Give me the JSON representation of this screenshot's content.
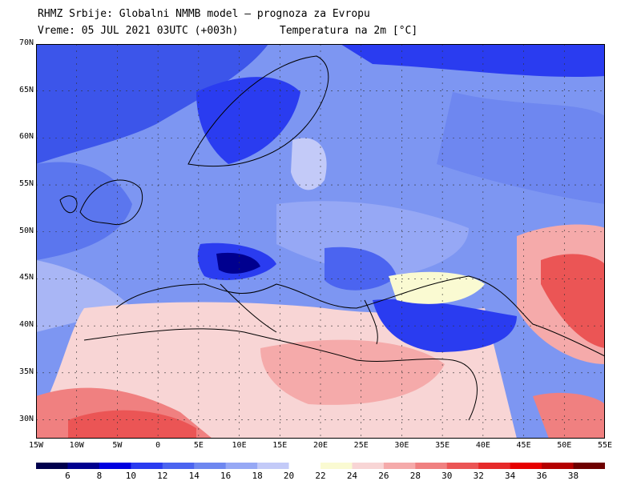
{
  "header": {
    "title": "RHMZ Srbije: Globalni NMMB model — prognoza za Evropu",
    "valid_time": "Vreme: 05 JUL 2021 03UTC (+003h)",
    "field": "Temperatura na 2m [°C]"
  },
  "axes": {
    "lat_labels": [
      "70N",
      "65N",
      "60N",
      "55N",
      "50N",
      "45N",
      "40N",
      "35N",
      "30N"
    ],
    "lat_values": [
      70,
      65,
      60,
      55,
      50,
      45,
      40,
      35,
      30
    ],
    "lon_labels": [
      "15W",
      "10W",
      "5W",
      "0",
      "5E",
      "10E",
      "15E",
      "20E",
      "25E",
      "30E",
      "35E",
      "40E",
      "45E",
      "50E",
      "55E"
    ],
    "lon_values": [
      -15,
      -10,
      -5,
      0,
      5,
      10,
      15,
      20,
      25,
      30,
      35,
      40,
      45,
      50,
      55
    ],
    "lon_range": [
      -15,
      55
    ],
    "lat_range": [
      28,
      70
    ]
  },
  "legend": {
    "labels": [
      "6",
      "8",
      "10",
      "12",
      "14",
      "16",
      "18",
      "20",
      "22",
      "24",
      "26",
      "28",
      "30",
      "32",
      "34",
      "36",
      "38"
    ],
    "colors": [
      "#00004d",
      "#00008f",
      "#0000e0",
      "#2a3cf0",
      "#4b64f0",
      "#6e87f0",
      "#96a8f5",
      "#c3caf8",
      "#ffffff",
      "#fafad2",
      "#f8d5d5",
      "#f5aaaa",
      "#f08080",
      "#eb5555",
      "#e62a2a",
      "#e60000",
      "#b40000",
      "#6e0000"
    ]
  }
}
